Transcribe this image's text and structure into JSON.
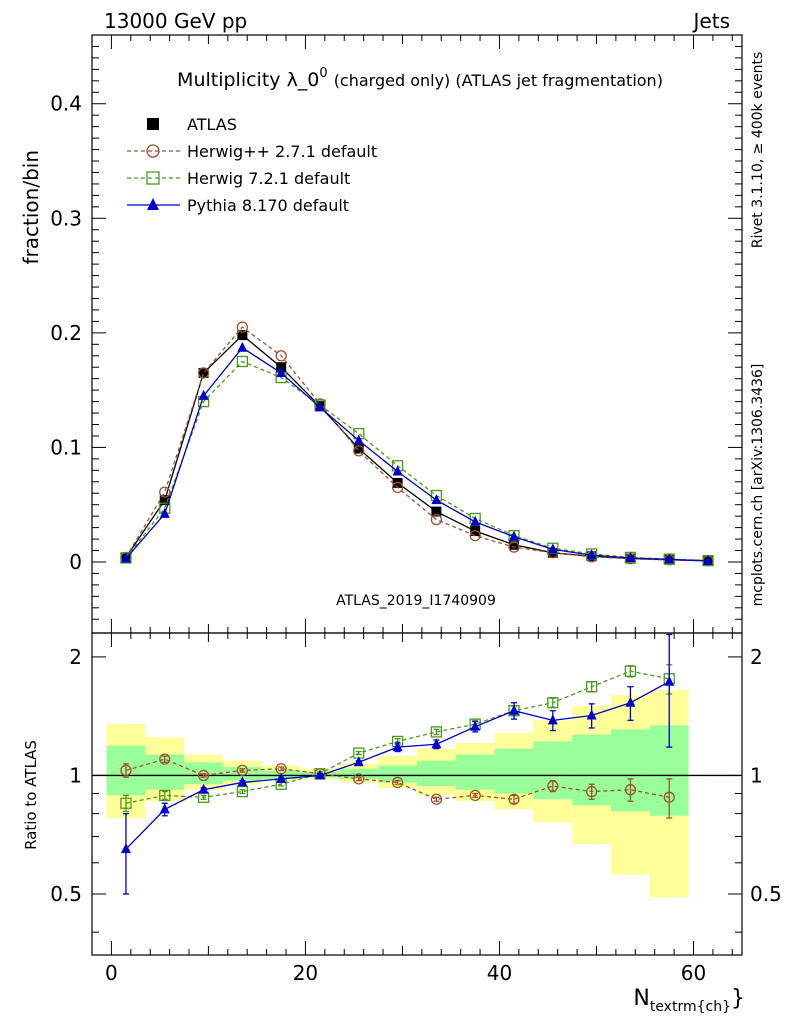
{
  "header": {
    "energy_label": "13000 GeV pp",
    "process_label": "Jets"
  },
  "side_labels": {
    "rivet": "Rivet 3.1.10, ≥ 400k events",
    "mcplots": "mcplots.cern.ch [arXiv:1306.3436]"
  },
  "watermark": "ATLAS_2019_I1740909",
  "chart_data": [
    {
      "type": "line",
      "title": "Multiplicity λ_0",
      "title_sup": "0",
      "title_suffix": "(charged only) (ATLAS jet fragmentation)",
      "ylabel": "fraction/bin",
      "xlim": [
        -2,
        65
      ],
      "ylim": [
        -0.062,
        0.46
      ],
      "x_ticks": [
        0,
        20,
        40,
        60
      ],
      "y_ticks": [
        0,
        0.1,
        0.2,
        0.3,
        0.4
      ],
      "y_tick_labels": [
        "0",
        "0.1",
        "0.2",
        "0.3",
        "0.4"
      ],
      "legend_position": "top-left",
      "x": [
        1.5,
        5.5,
        9.5,
        13.5,
        17.5,
        21.5,
        25.5,
        29.5,
        33.5,
        37.5,
        41.5,
        45.5,
        49.5,
        53.5,
        57.5,
        61.5
      ],
      "series": [
        {
          "name": "ATLAS",
          "color": "#000000",
          "marker": "square-filled",
          "dash": "none",
          "values": [
            0.004,
            0.054,
            0.165,
            0.198,
            0.17,
            0.136,
            0.099,
            0.069,
            0.044,
            0.027,
            0.015,
            0.008,
            0.005,
            0.003,
            0.002,
            0.001
          ]
        },
        {
          "name": "Herwig++ 2.7.1 default",
          "color": "#a0522d",
          "marker": "circle-open",
          "dash": "4,3",
          "values": [
            0.004,
            0.061,
            0.165,
            0.205,
            0.18,
            0.138,
            0.097,
            0.065,
            0.037,
            0.023,
            0.013,
            0.008,
            0.0045,
            0.0028,
            0.0018,
            0.001
          ]
        },
        {
          "name": "Herwig 7.2.1 default",
          "color": "#4a9a1a",
          "marker": "square-open",
          "dash": "4,3",
          "values": [
            0.0035,
            0.047,
            0.14,
            0.175,
            0.161,
            0.137,
            0.112,
            0.084,
            0.058,
            0.038,
            0.023,
            0.012,
            0.007,
            0.004,
            0.0025,
            0.0012
          ]
        },
        {
          "name": "Pythia 8.170 default",
          "color": "#0000cc",
          "marker": "triangle-filled",
          "dash": "none",
          "values": [
            0.003,
            0.042,
            0.145,
            0.187,
            0.165,
            0.135,
            0.106,
            0.079,
            0.054,
            0.035,
            0.022,
            0.011,
            0.006,
            0.0035,
            0.0022,
            0.001
          ]
        }
      ]
    },
    {
      "type": "line",
      "ylabel": "Ratio to ATLAS",
      "xlabel": "N",
      "xlabel_sub": "textrm{ch}",
      "xlabel_close": "}",
      "xlim": [
        -2,
        65
      ],
      "ylim": [
        0.35,
        2.3
      ],
      "x_ticks": [
        0,
        20,
        40,
        60
      ],
      "x_tick_labels": [
        "0",
        "20",
        "40",
        "60"
      ],
      "y_ticks": [
        0.5,
        1,
        2
      ],
      "y_tick_labels": [
        "0.5",
        "1",
        "2"
      ],
      "reference_line": 1,
      "bands": {
        "bin_edges": [
          -0.5,
          3.5,
          7.5,
          11.5,
          15.5,
          19.5,
          23.5,
          27.5,
          31.5,
          35.5,
          39.5,
          43.5,
          47.5,
          51.5,
          55.5,
          59.5
        ],
        "total_lo": [
          0.78,
          0.86,
          0.92,
          0.95,
          0.97,
          0.98,
          0.96,
          0.93,
          0.89,
          0.86,
          0.82,
          0.76,
          0.67,
          0.56,
          0.49
        ],
        "total_hi": [
          1.35,
          1.25,
          1.13,
          1.09,
          1.06,
          1.04,
          1.07,
          1.12,
          1.17,
          1.21,
          1.28,
          1.38,
          1.5,
          1.6,
          1.65
        ],
        "stat_lo": [
          0.89,
          0.92,
          0.95,
          0.97,
          0.98,
          0.99,
          0.98,
          0.96,
          0.94,
          0.92,
          0.9,
          0.87,
          0.84,
          0.81,
          0.79
        ],
        "stat_hi": [
          1.19,
          1.13,
          1.08,
          1.05,
          1.03,
          1.02,
          1.04,
          1.06,
          1.09,
          1.13,
          1.17,
          1.22,
          1.27,
          1.31,
          1.34
        ],
        "total_color": "#ffff99",
        "stat_color": "#99ff99"
      },
      "x": [
        1.5,
        5.5,
        9.5,
        13.5,
        17.5,
        21.5,
        25.5,
        29.5,
        33.5,
        37.5,
        41.5,
        45.5,
        49.5,
        53.5,
        57.5
      ],
      "series": [
        {
          "name": "Herwig++ 2.7.1 default",
          "color": "#a0522d",
          "marker": "circle-open",
          "dash": "4,3",
          "values": [
            1.03,
            1.1,
            1.0,
            1.03,
            1.04,
            1.01,
            0.98,
            0.96,
            0.87,
            0.89,
            0.87,
            0.94,
            0.91,
            0.92,
            0.88
          ],
          "errors": [
            0.04,
            0.02,
            0.01,
            0.01,
            0.01,
            0.01,
            0.01,
            0.01,
            0.01,
            0.01,
            0.02,
            0.03,
            0.04,
            0.06,
            0.1
          ]
        },
        {
          "name": "Herwig 7.2.1 default",
          "color": "#4a9a1a",
          "marker": "square-open",
          "dash": "4,3",
          "values": [
            0.85,
            0.89,
            0.88,
            0.91,
            0.95,
            1.01,
            1.14,
            1.22,
            1.29,
            1.35,
            1.46,
            1.53,
            1.68,
            1.84,
            1.76
          ],
          "errors": [
            0.04,
            0.02,
            0.01,
            0.01,
            0.01,
            0.01,
            0.01,
            0.02,
            0.02,
            0.03,
            0.04,
            0.04,
            0.05,
            0.06,
            0.15
          ]
        },
        {
          "name": "Pythia 8.170 default",
          "color": "#0000cc",
          "marker": "triangle-filled",
          "dash": "none",
          "values": [
            0.65,
            0.82,
            0.92,
            0.96,
            0.98,
            1.0,
            1.08,
            1.18,
            1.2,
            1.33,
            1.46,
            1.38,
            1.42,
            1.53,
            1.73
          ],
          "errors": [
            0.15,
            0.03,
            0.01,
            0.01,
            0.01,
            0.01,
            0.01,
            0.03,
            0.03,
            0.04,
            0.07,
            0.08,
            0.1,
            0.15,
            0.55
          ]
        }
      ]
    }
  ]
}
